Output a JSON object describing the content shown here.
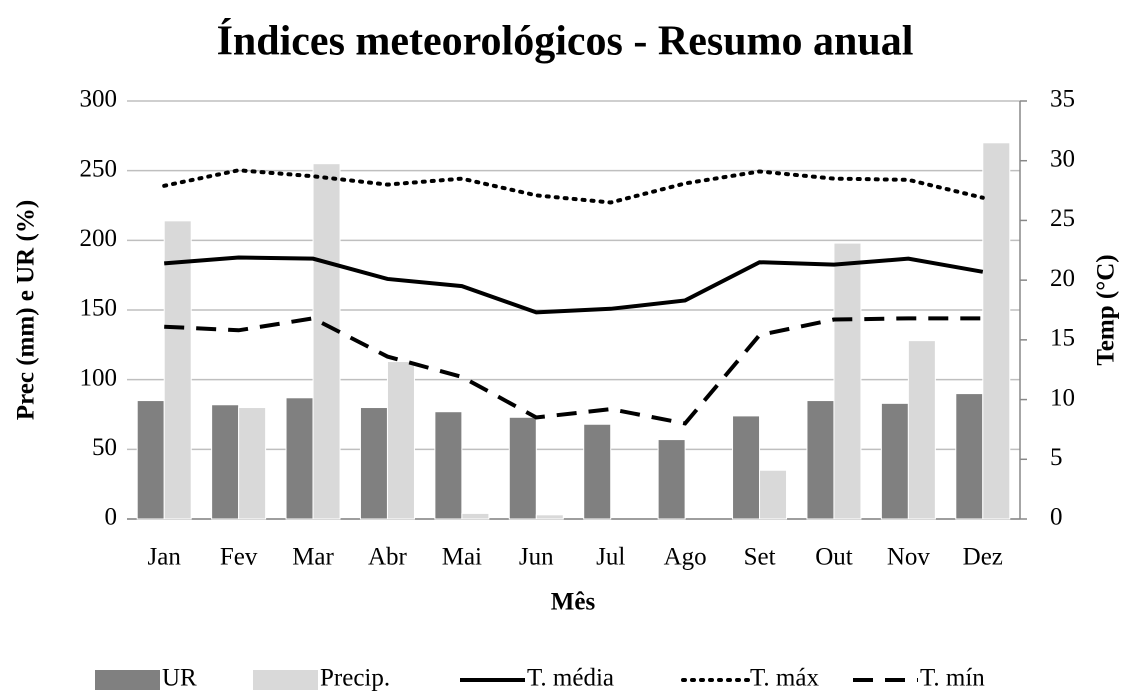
{
  "chart_data": {
    "type": "bar-line",
    "title": "Índices meteorológicos - Resumo anual",
    "x_label": "Mês",
    "y_label": "Prec (mm) e UR (%)",
    "y2_label": "Temp (°C)",
    "categories": [
      "Jan",
      "Fev",
      "Mar",
      "Abr",
      "Mai",
      "Jun",
      "Jul",
      "Ago",
      "Set",
      "Out",
      "Nov",
      "Dez"
    ],
    "ylim": [
      0,
      300
    ],
    "yticks": [
      0,
      50,
      100,
      150,
      200,
      250,
      300
    ],
    "y2lim": [
      0,
      35
    ],
    "y2ticks": [
      0,
      5,
      10,
      15,
      20,
      25,
      30,
      35
    ],
    "grid": true,
    "legend": "bottom",
    "series": [
      {
        "name": "UR",
        "type": "bar",
        "color": "#808080",
        "values": [
          85,
          82,
          87,
          80,
          77,
          73,
          68,
          57,
          74,
          85,
          83,
          90
        ]
      },
      {
        "name": "Precip.",
        "type": "bar",
        "color": "#d9d9d9",
        "values": [
          214,
          80,
          255,
          113,
          4,
          3,
          0,
          0,
          35,
          198,
          128,
          270
        ]
      },
      {
        "name": "T. média",
        "type": "line",
        "axis": "y2",
        "color": "#000000",
        "dash": "solid",
        "values": [
          21.4,
          21.9,
          21.8,
          20.1,
          19.5,
          17.3,
          17.6,
          18.3,
          21.5,
          21.3,
          21.8,
          20.7
        ]
      },
      {
        "name": "T. máx",
        "type": "line",
        "axis": "y2",
        "color": "#000000",
        "dash": "dotted",
        "values": [
          27.9,
          29.2,
          28.7,
          28.0,
          28.5,
          27.1,
          26.5,
          28.1,
          29.1,
          28.5,
          28.4,
          26.9
        ]
      },
      {
        "name": "T. mín",
        "type": "line",
        "axis": "y2",
        "color": "#000000",
        "dash": "dashed",
        "values": [
          16.1,
          15.8,
          16.8,
          13.6,
          11.9,
          8.5,
          9.2,
          8.0,
          15.4,
          16.7,
          16.8,
          16.8
        ]
      }
    ]
  }
}
